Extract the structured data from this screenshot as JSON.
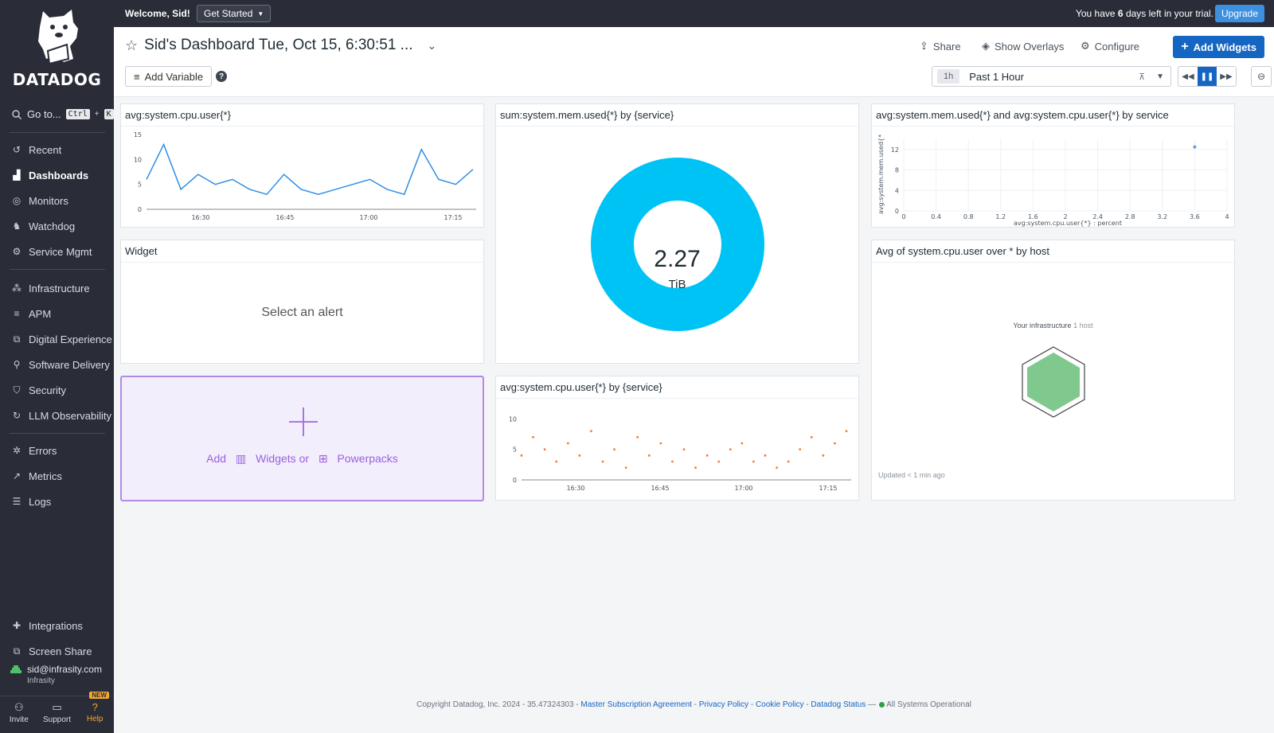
{
  "brand": {
    "wordmark": "DATADOG"
  },
  "sidebar": {
    "goto_label": "Go to...",
    "goto_keys": [
      "Ctrl",
      "K"
    ],
    "items": [
      {
        "label": "Recent",
        "icon": "recent-icon"
      },
      {
        "label": "Dashboards",
        "icon": "dashboards-icon",
        "active": true
      },
      {
        "label": "Monitors",
        "icon": "monitors-icon"
      },
      {
        "label": "Watchdog",
        "icon": "watchdog-icon"
      },
      {
        "label": "Service Mgmt",
        "icon": "service-mgmt-icon"
      },
      {
        "label": "Infrastructure",
        "icon": "infrastructure-icon"
      },
      {
        "label": "APM",
        "icon": "apm-icon"
      },
      {
        "label": "Digital Experience",
        "icon": "digital-experience-icon"
      },
      {
        "label": "Software Delivery",
        "icon": "software-delivery-icon"
      },
      {
        "label": "Security",
        "icon": "security-icon"
      },
      {
        "label": "LLM Observability",
        "icon": "llm-icon"
      },
      {
        "label": "Errors",
        "icon": "errors-icon"
      },
      {
        "label": "Metrics",
        "icon": "metrics-icon"
      },
      {
        "label": "Logs",
        "icon": "logs-icon"
      },
      {
        "label": "Integrations",
        "icon": "integrations-icon"
      },
      {
        "label": "Screen Share",
        "icon": "screen-share-icon"
      }
    ],
    "user": {
      "email": "sid@infrasity.com",
      "org": "Infrasity"
    },
    "bottom": {
      "invite": "Invite",
      "support": "Support",
      "help": "Help",
      "new_badge": "NEW"
    }
  },
  "topbar": {
    "welcome": "Welcome, Sid!",
    "get_started": "Get Started",
    "trial_prefix": "You have ",
    "trial_days": "6",
    "trial_suffix": " days left in your trial.",
    "upgrade": "Upgrade"
  },
  "header": {
    "title": "Sid's Dashboard Tue, Oct 15, 6:30:51 ...",
    "share": "Share",
    "show_overlays": "Show Overlays",
    "configure": "Configure",
    "add_widgets": "Add Widgets",
    "add_variable": "Add Variable",
    "help_glyph": "?",
    "time_chip": "1h",
    "time_label": "Past 1 Hour"
  },
  "widgets": {
    "cpu_timeseries": {
      "title": "avg:system.cpu.user{*}",
      "yticks": [
        "15",
        "10",
        "5",
        "0"
      ],
      "xticks": [
        "16:30",
        "16:45",
        "17:00",
        "17:15"
      ]
    },
    "mem_donut": {
      "title": "sum:system.mem.used{*} by {service}",
      "value": "2.27",
      "unit": "TiB",
      "color": "#00c3f5"
    },
    "scatter": {
      "title": "avg:system.mem.used{*} and avg:system.cpu.user{*} by service",
      "yticks": [
        "12",
        "8",
        "4",
        "0"
      ],
      "xticks": [
        "0",
        "0.4",
        "0.8",
        "1.2",
        "1.6",
        "2",
        "2.4",
        "2.8",
        "3.2",
        "3.6",
        "4"
      ],
      "ylabel": "avg:system.mem.used{*",
      "xlabel": "avg:system.cpu.user{*} : percent"
    },
    "alert": {
      "title": "Widget",
      "placeholder": "Select an alert"
    },
    "hostmap": {
      "title": "Avg of system.cpu.user over * by host",
      "infra_label": "Your infrastructure",
      "infra_count": "1 host",
      "updated": "Updated < 1 min ago",
      "hex_color": "#7fc98f"
    },
    "add_box": {
      "add": "Add",
      "widgets": "Widgets or",
      "powerpacks": "Powerpacks"
    },
    "cpu_service": {
      "title": "avg:system.cpu.user{*} by {service}",
      "yticks": [
        "10",
        "5",
        "0"
      ],
      "xticks": [
        "16:30",
        "16:45",
        "17:00",
        "17:15"
      ],
      "color": "#f47b36"
    }
  },
  "footer": {
    "copyright": "Copyright Datadog, Inc. 2024 - 35.47324303 - ",
    "msa": "Master Subscription Agreement",
    "privacy": "Privacy Policy",
    "cookie": "Cookie Policy",
    "status": "Datadog Status",
    "operational": "All Systems Operational"
  },
  "chart_data": [
    {
      "type": "line",
      "title": "avg:system.cpu.user{*}",
      "x": [
        "16:22",
        "16:25",
        "16:28",
        "16:30",
        "16:33",
        "16:36",
        "16:39",
        "16:42",
        "16:45",
        "16:48",
        "16:51",
        "16:54",
        "16:57",
        "17:00",
        "17:03",
        "17:06",
        "17:09",
        "17:12",
        "17:15",
        "17:18"
      ],
      "values": [
        6,
        13,
        4,
        7,
        5,
        6,
        4,
        3,
        7,
        4,
        3,
        4,
        5,
        6,
        4,
        3,
        12,
        6,
        5,
        8
      ],
      "ylim": [
        0,
        15
      ],
      "color": "#2f8ee6"
    },
    {
      "type": "pie",
      "title": "sum:system.mem.used{*} by {service}",
      "categories": [
        "service"
      ],
      "values": [
        2.27
      ],
      "unit": "TiB"
    },
    {
      "type": "scatter",
      "title": "avg:system.mem.used{*} and avg:system.cpu.user{*} by service",
      "x": [
        3.6
      ],
      "values": [
        12.5
      ],
      "xlim": [
        0,
        4
      ],
      "ylim": [
        0,
        14
      ]
    },
    {
      "type": "scatter",
      "title": "avg:system.cpu.user{*} by {service}",
      "x": [
        "16:22",
        "16:24",
        "16:26",
        "16:28",
        "16:30",
        "16:32",
        "16:34",
        "16:36",
        "16:38",
        "16:40",
        "16:42",
        "16:44",
        "16:46",
        "16:48",
        "16:50",
        "16:52",
        "16:54",
        "16:56",
        "16:58",
        "17:00",
        "17:02",
        "17:04",
        "17:06",
        "17:08",
        "17:10",
        "17:12",
        "17:14",
        "17:16",
        "17:18"
      ],
      "values": [
        4,
        7,
        5,
        3,
        6,
        4,
        8,
        3,
        5,
        2,
        7,
        4,
        6,
        3,
        5,
        2,
        4,
        3,
        5,
        6,
        3,
        4,
        2,
        3,
        5,
        7,
        4,
        6,
        8
      ],
      "ylim": [
        0,
        12
      ],
      "color": "#f47b36"
    }
  ]
}
